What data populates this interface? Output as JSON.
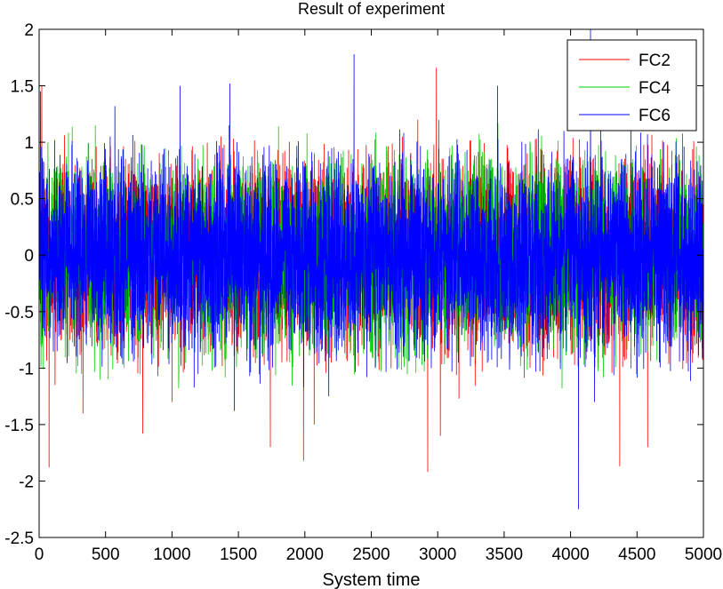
{
  "chart_data": {
    "type": "line",
    "title": "Result of experiment",
    "xlabel": "System time",
    "ylabel": "",
    "xlim": [
      0,
      5000
    ],
    "ylim": [
      -2.5,
      2
    ],
    "xticks": [
      0,
      500,
      1000,
      1500,
      2000,
      2500,
      3000,
      3500,
      4000,
      4500,
      5000
    ],
    "yticks": [
      2,
      1.5,
      1,
      0.5,
      0,
      -0.5,
      -1,
      -1.5,
      -2,
      -2.5
    ],
    "grid": false,
    "legend_position": "top-right",
    "samples": 5000,
    "series": [
      {
        "name": "FC2",
        "color": "#ff0000",
        "noise_amplitude": 0.55,
        "spikes": [
          {
            "x": 20,
            "y": 1.5
          },
          {
            "x": 75,
            "y": -1.88
          },
          {
            "x": 120,
            "y": -1.15
          },
          {
            "x": 330,
            "y": -1.4
          },
          {
            "x": 780,
            "y": -1.58
          },
          {
            "x": 1000,
            "y": -1.3
          },
          {
            "x": 1430,
            "y": 1.15
          },
          {
            "x": 1740,
            "y": -1.7
          },
          {
            "x": 1990,
            "y": -1.82
          },
          {
            "x": 2070,
            "y": -1.5
          },
          {
            "x": 2850,
            "y": 1.2
          },
          {
            "x": 2925,
            "y": -1.92
          },
          {
            "x": 2990,
            "y": 1.66
          },
          {
            "x": 3020,
            "y": -1.6
          },
          {
            "x": 3160,
            "y": -1.27
          },
          {
            "x": 4370,
            "y": -1.87
          },
          {
            "x": 4580,
            "y": -1.7
          }
        ]
      },
      {
        "name": "FC4",
        "color": "#00cc00",
        "noise_amplitude": 0.55,
        "spikes": [
          {
            "x": 1050,
            "y": -1.18
          },
          {
            "x": 520,
            "y": -1.1
          },
          {
            "x": 3400,
            "y": 0.75
          }
        ]
      },
      {
        "name": "FC6",
        "color": "#0000ff",
        "noise_amplitude": 0.55,
        "spikes": [
          {
            "x": 10,
            "y": 1.45
          },
          {
            "x": 570,
            "y": 1.32
          },
          {
            "x": 1060,
            "y": 1.5
          },
          {
            "x": 1435,
            "y": 1.52
          },
          {
            "x": 1470,
            "y": -1.38
          },
          {
            "x": 1490,
            "y": 1.0
          },
          {
            "x": 2180,
            "y": -1.25
          },
          {
            "x": 2370,
            "y": 1.78
          },
          {
            "x": 2530,
            "y": -1.0
          },
          {
            "x": 3450,
            "y": 1.5
          },
          {
            "x": 3950,
            "y": 1.1
          },
          {
            "x": 4060,
            "y": -2.25
          },
          {
            "x": 4150,
            "y": 2.0
          },
          {
            "x": 4180,
            "y": -1.3
          },
          {
            "x": 4700,
            "y": 1.0
          }
        ]
      }
    ]
  }
}
